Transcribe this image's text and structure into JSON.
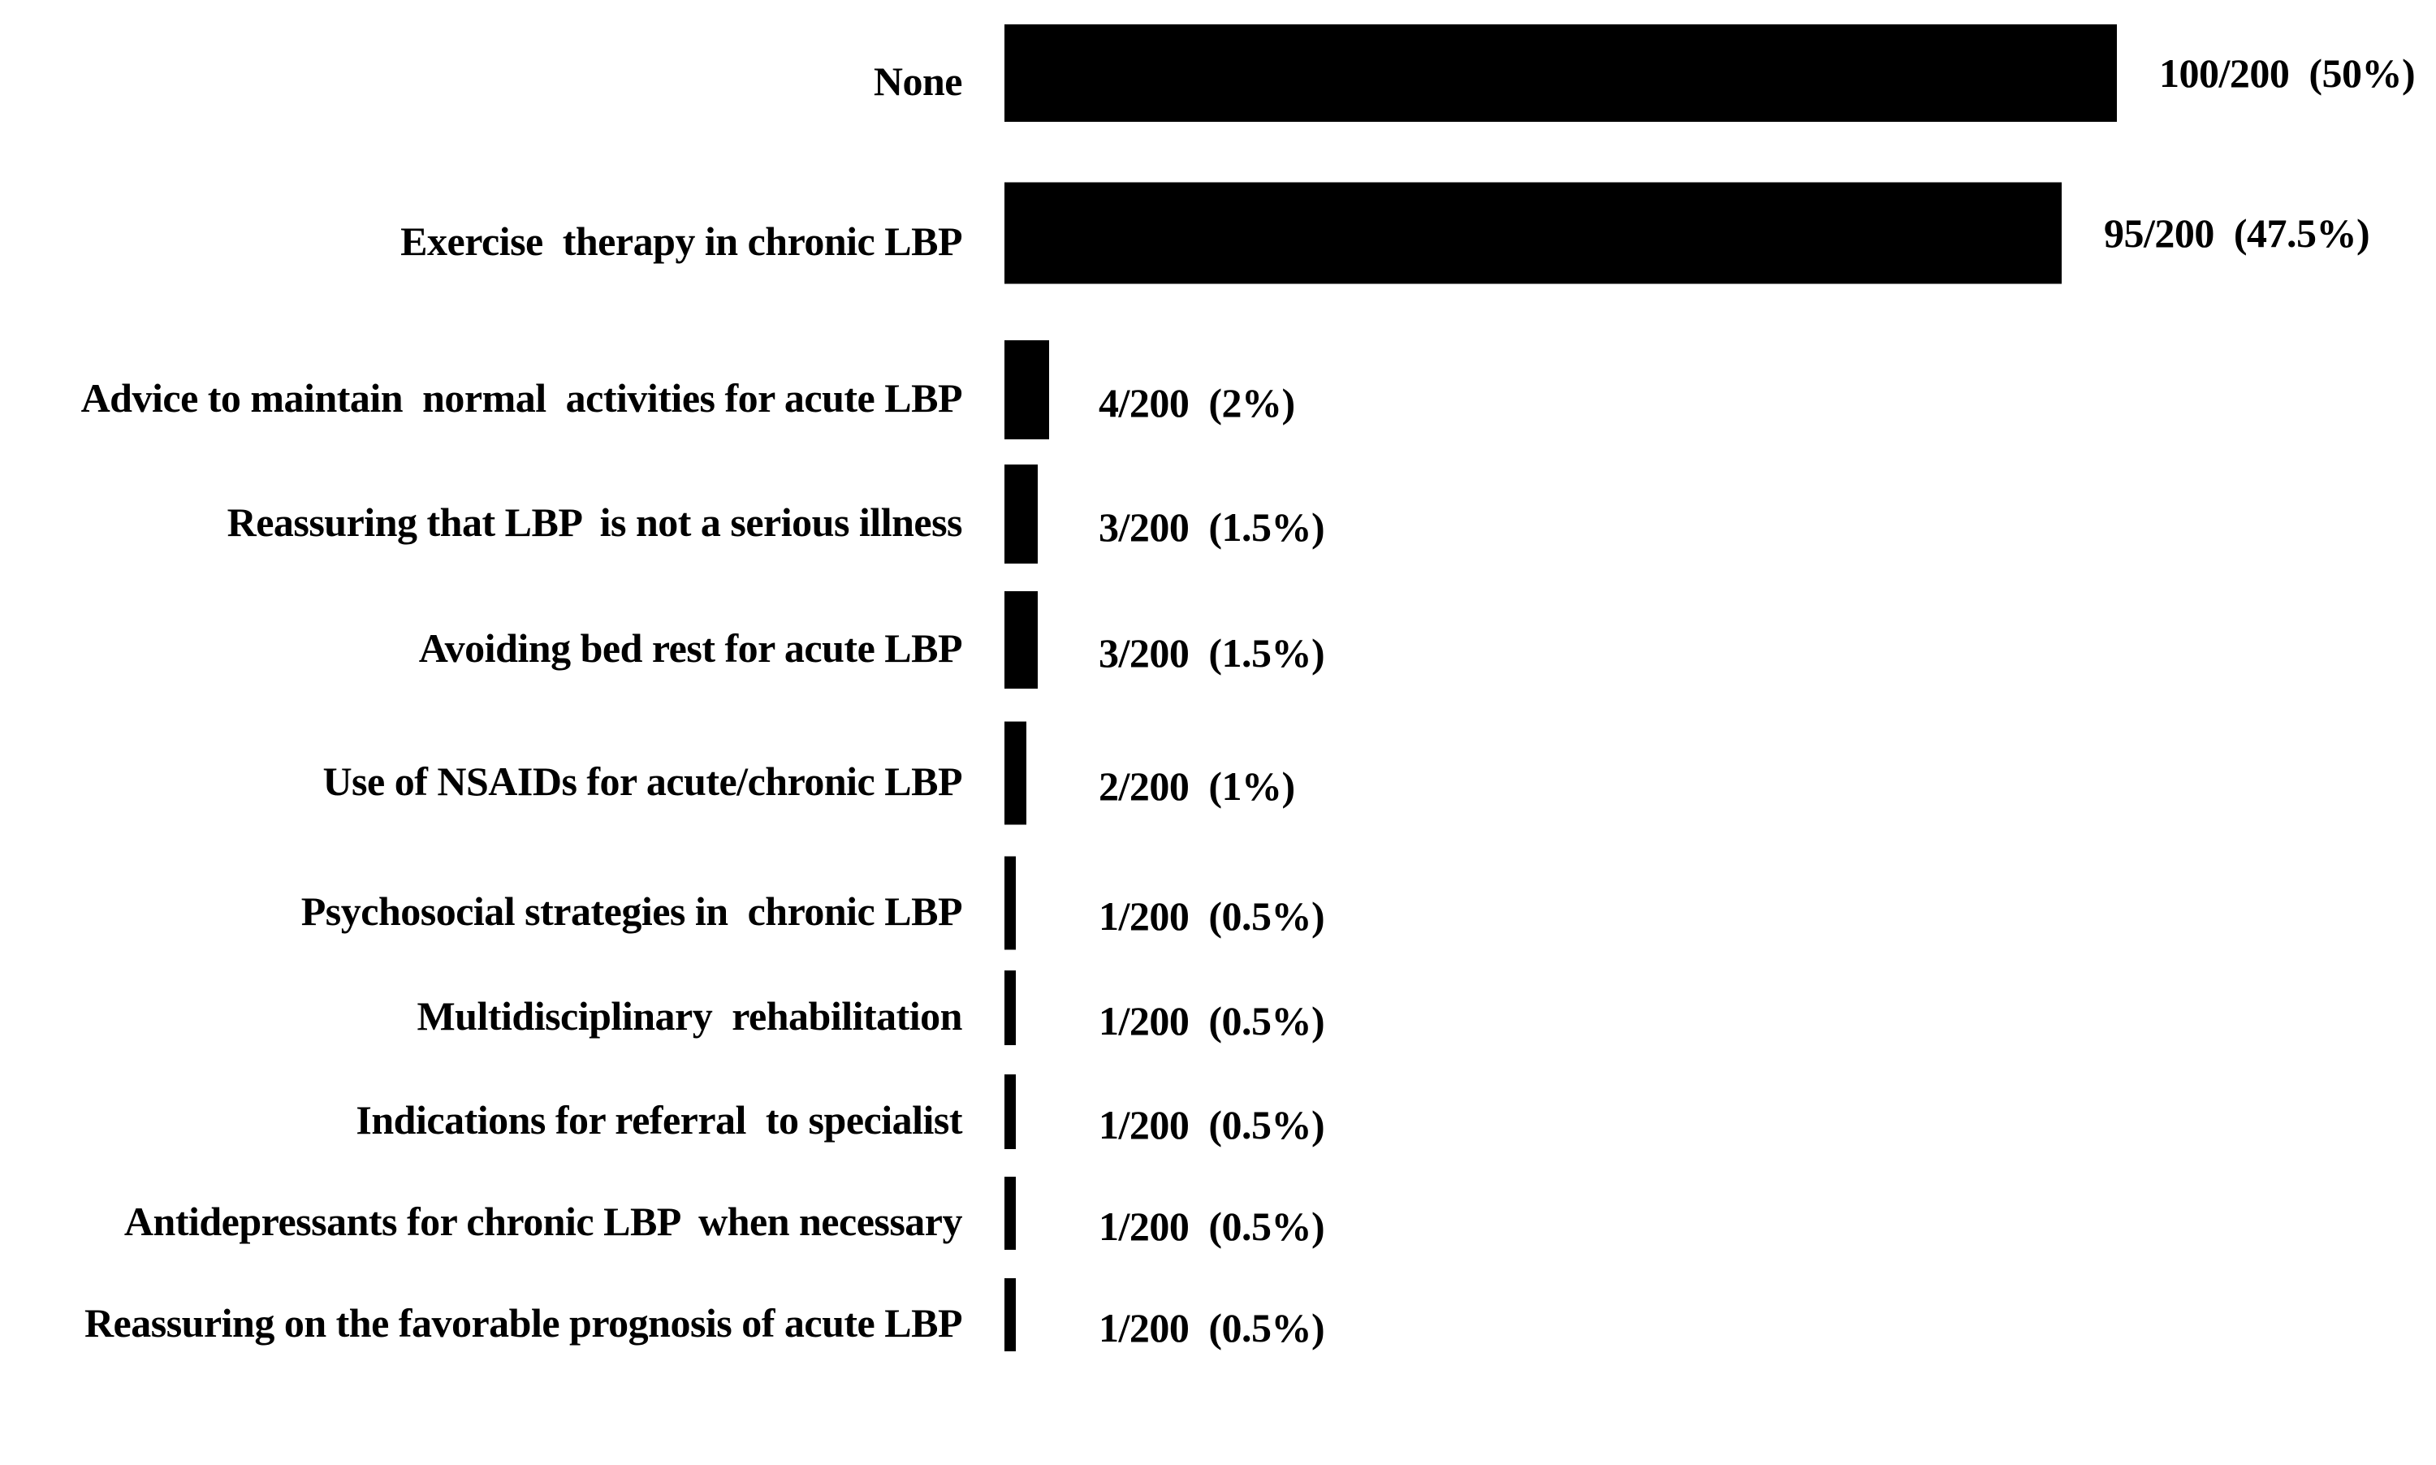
{
  "chart_data": {
    "type": "bar",
    "orientation": "horizontal",
    "title": "",
    "xlabel": "",
    "ylabel": "",
    "xlim": [
      0,
      100
    ],
    "grid": false,
    "legend": "none",
    "bar_color": "#000000",
    "background_color": "#ffffff",
    "text_color": "#000000",
    "denominator": 200,
    "categories": [
      "None",
      "Exercise  therapy in chronic LBP",
      "Advice to maintain  normal  activities for acute LBP",
      "Reassuring that LBP  is not a serious illness",
      "Avoiding bed rest for acute LBP",
      "Use of NSAIDs for acute/chronic LBP",
      "Psychosocial strategies in  chronic LBP",
      "Multidisciplinary  rehabilitation",
      "Indications for referral  to specialist",
      "Antidepressants for chronic LBP  when necessary",
      "Reassuring on the favorable prognosis of acute LBP"
    ],
    "values": [
      100,
      95,
      4,
      3,
      3,
      2,
      1,
      1,
      1,
      1,
      1
    ],
    "percentages": [
      50,
      47.5,
      2,
      1.5,
      1.5,
      1,
      0.5,
      0.5,
      0.5,
      0.5,
      0.5
    ],
    "value_labels": [
      "100/200  (50%)",
      "95/200  (47.5%)",
      "4/200  (2%)",
      "3/200  (1.5%)",
      "3/200  (1.5%)",
      "2/200  (1%)",
      "1/200  (0.5%)",
      "1/200  (0.5%)",
      "1/200  (0.5%)",
      "1/200  (0.5%)",
      "1/200  (0.5%)"
    ]
  }
}
